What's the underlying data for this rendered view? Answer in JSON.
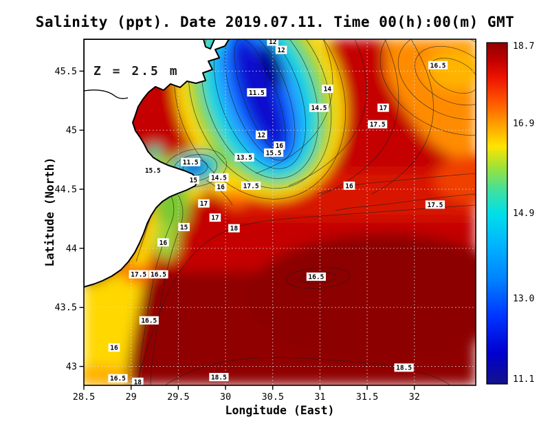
{
  "chart_data": {
    "type": "heatmap",
    "subtype": "filled-contour-map",
    "title": "Salinity (ppt). Date 2019.07.11. Time 00(h):00(m) GMT",
    "variable": "Salinity",
    "units": "ppt",
    "date": "2019.07.11",
    "time_gmt": "00(h):00(m)",
    "depth_annotation": "Z = 2.5 m",
    "xlabel": "Longitude (East)",
    "ylabel": "Latitude (North)",
    "xlim": [
      28.5,
      32.65
    ],
    "ylim": [
      42.84,
      45.77
    ],
    "x_ticks": [
      28.5,
      29,
      29.5,
      30,
      30.5,
      31,
      31.5,
      32
    ],
    "x_tick_labels": [
      "28.5",
      "29",
      "29.5",
      "30",
      "30.5",
      "31",
      "31.5",
      "32"
    ],
    "y_ticks": [
      43,
      43.5,
      44,
      44.5,
      45,
      45.5
    ],
    "y_tick_labels": [
      "43",
      "43.5",
      "44",
      "44.5",
      "45",
      "45.5"
    ],
    "grid": "dotted",
    "contour_interval": 0.5,
    "colorbar": {
      "position": "right",
      "min": 11.1,
      "max": 18.7,
      "tick_values": [
        18.7,
        16.9,
        14.9,
        13.0,
        11.1
      ],
      "tick_labels": [
        "18.7",
        "16.9",
        "14.9",
        "13.0",
        "11.1"
      ],
      "stops": [
        {
          "v": 11.1,
          "c": "#13138a"
        },
        {
          "v": 11.8,
          "c": "#0000d0"
        },
        {
          "v": 12.6,
          "c": "#0033ff"
        },
        {
          "v": 13.4,
          "c": "#0080ff"
        },
        {
          "v": 14.2,
          "c": "#00b4ff"
        },
        {
          "v": 14.9,
          "c": "#00e0e8"
        },
        {
          "v": 15.4,
          "c": "#3fe0a0"
        },
        {
          "v": 15.9,
          "c": "#9ae23c"
        },
        {
          "v": 16.4,
          "c": "#ffe400"
        },
        {
          "v": 16.9,
          "c": "#ff9c00"
        },
        {
          "v": 17.4,
          "c": "#ff5400"
        },
        {
          "v": 17.9,
          "c": "#ee1500"
        },
        {
          "v": 18.3,
          "c": "#c40000"
        },
        {
          "v": 18.7,
          "c": "#8f0000"
        }
      ]
    },
    "labeled_contours": [
      {
        "value": "12",
        "lon": 30.5,
        "lat": 45.75
      },
      {
        "value": "12",
        "lon": 30.59,
        "lat": 45.68
      },
      {
        "value": "11.5",
        "lon": 30.33,
        "lat": 45.32
      },
      {
        "value": "14",
        "lon": 31.08,
        "lat": 45.35
      },
      {
        "value": "14.5",
        "lon": 30.99,
        "lat": 45.19
      },
      {
        "value": "17",
        "lon": 31.67,
        "lat": 45.19
      },
      {
        "value": "17.5",
        "lon": 31.61,
        "lat": 45.05
      },
      {
        "value": "16.5",
        "lon": 32.25,
        "lat": 45.55
      },
      {
        "value": "12",
        "lon": 30.38,
        "lat": 44.96
      },
      {
        "value": "16",
        "lon": 30.57,
        "lat": 44.87
      },
      {
        "value": "15.5",
        "lon": 30.51,
        "lat": 44.81
      },
      {
        "value": "13.5",
        "lon": 30.2,
        "lat": 44.77
      },
      {
        "value": "11.5",
        "lon": 29.63,
        "lat": 44.73
      },
      {
        "value": "15.5",
        "lon": 29.23,
        "lat": 44.66
      },
      {
        "value": "14.5",
        "lon": 29.93,
        "lat": 44.6
      },
      {
        "value": "15",
        "lon": 29.66,
        "lat": 44.58
      },
      {
        "value": "16",
        "lon": 29.95,
        "lat": 44.52
      },
      {
        "value": "17.5",
        "lon": 30.27,
        "lat": 44.53
      },
      {
        "value": "16",
        "lon": 31.31,
        "lat": 44.53
      },
      {
        "value": "17",
        "lon": 29.77,
        "lat": 44.38
      },
      {
        "value": "17.5",
        "lon": 32.22,
        "lat": 44.37
      },
      {
        "value": "17",
        "lon": 29.89,
        "lat": 44.26
      },
      {
        "value": "18",
        "lon": 30.09,
        "lat": 44.17
      },
      {
        "value": "15",
        "lon": 29.56,
        "lat": 44.18
      },
      {
        "value": "16",
        "lon": 29.34,
        "lat": 44.05
      },
      {
        "value": "17.5",
        "lon": 29.08,
        "lat": 43.78
      },
      {
        "value": "16.5",
        "lon": 29.29,
        "lat": 43.78
      },
      {
        "value": "16.5",
        "lon": 30.96,
        "lat": 43.76
      },
      {
        "value": "16.5",
        "lon": 29.19,
        "lat": 43.39
      },
      {
        "value": "16",
        "lon": 28.82,
        "lat": 43.16
      },
      {
        "value": "18.5",
        "lon": 31.89,
        "lat": 42.99
      },
      {
        "value": "16.5",
        "lon": 28.86,
        "lat": 42.9
      },
      {
        "value": "18",
        "lon": 29.07,
        "lat": 42.87
      },
      {
        "value": "18.5",
        "lon": 29.93,
        "lat": 42.91
      }
    ],
    "land_color": "#ffffff",
    "coastline_color": "#000000",
    "field_summary": "Low-salinity river plume (11-13 ppt, dark blue) along the northwestern coast; fresh coastal band 15-16.5 ppt (green-yellow) down the west coast; high salinity 18-18.7 ppt (dark red) over the southern and eastern open sea; 16.5-17.5 ppt (orange) in the northeast."
  }
}
